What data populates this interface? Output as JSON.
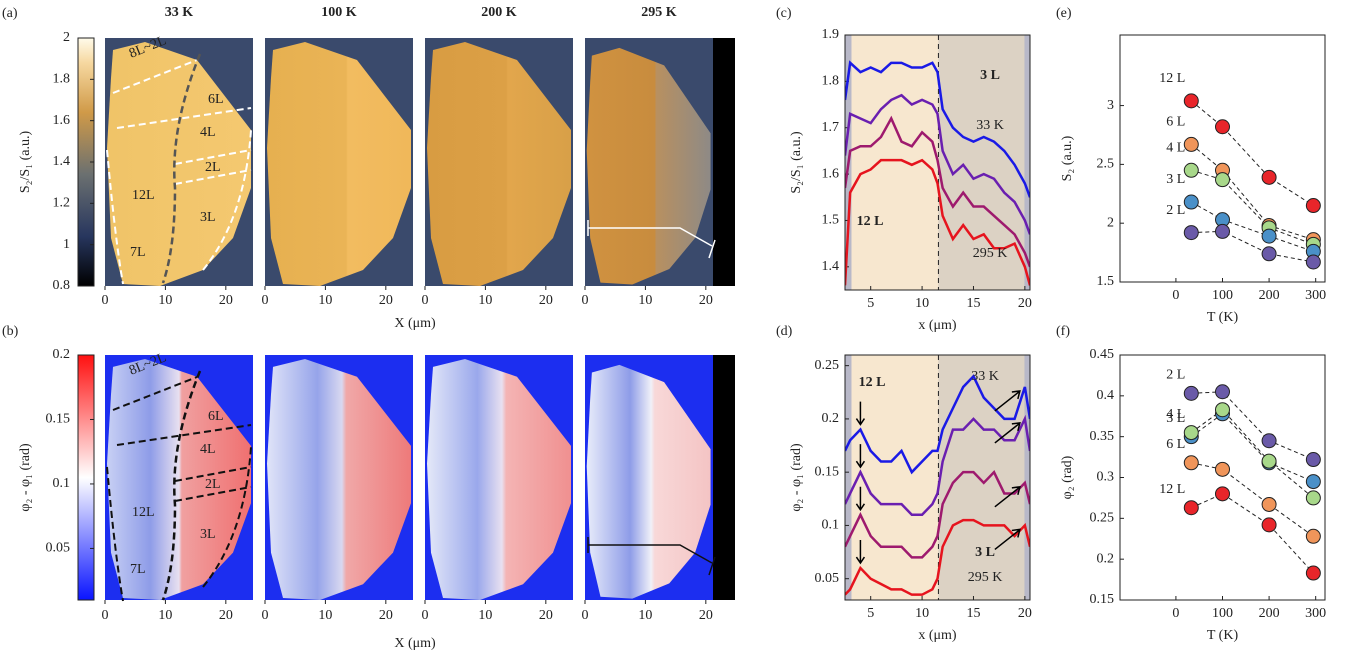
{
  "chart_data": [
    {
      "type": "image",
      "panel": "(a)",
      "titles": [
        "33 K",
        "100 K",
        "200 K",
        "295 K"
      ],
      "xlabel": "X (μm)",
      "xlim": [
        0,
        24.5
      ],
      "xticks": [
        0,
        10,
        20
      ],
      "colorbar_label": "S₂/S₁ (a.u.)",
      "clim": [
        0.8,
        2
      ],
      "cticks": [
        0.8,
        1,
        1.2,
        1.4,
        1.6,
        1.8,
        2
      ],
      "regions": [
        "8L~2L",
        "6L",
        "4L",
        "2L",
        "12L",
        "3L",
        "7L"
      ]
    },
    {
      "type": "image",
      "panel": "(b)",
      "xlabel": "X (μm)",
      "xlim": [
        0,
        24.5
      ],
      "xticks": [
        0,
        10,
        20
      ],
      "colorbar_label": "φ₂ - φ₁ (rad)",
      "clim": [
        0.01,
        0.2
      ],
      "cticks": [
        0.05,
        0.1,
        0.15,
        0.2
      ],
      "regions": [
        "8L~2L",
        "6L",
        "4L",
        "2L",
        "12L",
        "3L",
        "7L"
      ]
    },
    {
      "type": "line",
      "panel": "(c)",
      "xlabel": "x (μm)",
      "ylabel": "S₂/S₁ (a.u.)",
      "xlim": [
        2.5,
        20.5
      ],
      "ylim": [
        1.35,
        1.9
      ],
      "xticks": [
        5,
        10,
        15,
        20
      ],
      "yticks": [
        1.4,
        1.5,
        1.6,
        1.7,
        1.8,
        1.9
      ],
      "region_labels": [
        "3 L",
        "12 L"
      ],
      "x": [
        2.5,
        3,
        4,
        5,
        6,
        7,
        8,
        9,
        10,
        11,
        11.5,
        12,
        13,
        14,
        15,
        16,
        17,
        18,
        19,
        20,
        20.5
      ],
      "series": [
        {
          "name": "33 K",
          "color": "#1a1ae6",
          "values": [
            1.76,
            1.84,
            1.82,
            1.83,
            1.82,
            1.84,
            1.84,
            1.83,
            1.83,
            1.84,
            1.82,
            1.74,
            1.7,
            1.68,
            1.67,
            1.68,
            1.67,
            1.65,
            1.62,
            1.58,
            1.55
          ]
        },
        {
          "color": "#6a1fb0",
          "values": [
            1.64,
            1.73,
            1.72,
            1.71,
            1.74,
            1.76,
            1.77,
            1.75,
            1.76,
            1.75,
            1.73,
            1.65,
            1.6,
            1.62,
            1.59,
            1.6,
            1.59,
            1.56,
            1.54,
            1.5,
            1.47
          ]
        },
        {
          "color": "#9e1a6e",
          "values": [
            1.57,
            1.65,
            1.66,
            1.66,
            1.68,
            1.72,
            1.67,
            1.66,
            1.69,
            1.67,
            1.63,
            1.57,
            1.53,
            1.56,
            1.53,
            1.53,
            1.51,
            1.49,
            1.47,
            1.43,
            1.4
          ]
        },
        {
          "name": "295 K",
          "color": "#e6141e",
          "values": [
            1.36,
            1.56,
            1.6,
            1.61,
            1.63,
            1.63,
            1.63,
            1.62,
            1.63,
            1.61,
            1.58,
            1.51,
            1.46,
            1.49,
            1.46,
            1.47,
            1.44,
            1.44,
            1.45,
            1.4,
            1.36
          ]
        }
      ]
    },
    {
      "type": "line",
      "panel": "(d)",
      "xlabel": "x (μm)",
      "ylabel": "φ₂ - φ₁ (rad)",
      "xlim": [
        2.5,
        20.5
      ],
      "ylim": [
        0.03,
        0.26
      ],
      "xticks": [
        5,
        10,
        15,
        20
      ],
      "yticks": [
        0.05,
        0.1,
        0.15,
        0.2,
        0.25
      ],
      "region_labels": [
        "12 L",
        "3 L"
      ],
      "x": [
        2.5,
        3,
        4,
        5,
        6,
        7,
        8,
        9,
        10,
        11,
        11.5,
        12,
        13,
        14,
        15,
        16,
        17,
        18,
        19,
        20,
        20.5
      ],
      "series": [
        {
          "name": "33 K",
          "color": "#1a1ae6",
          "values": [
            0.17,
            0.18,
            0.19,
            0.17,
            0.16,
            0.16,
            0.17,
            0.15,
            0.16,
            0.17,
            0.17,
            0.19,
            0.21,
            0.23,
            0.24,
            0.22,
            0.21,
            0.2,
            0.2,
            0.23,
            0.2
          ]
        },
        {
          "color": "#6a1fb0",
          "values": [
            0.12,
            0.13,
            0.15,
            0.13,
            0.12,
            0.12,
            0.12,
            0.11,
            0.11,
            0.12,
            0.13,
            0.16,
            0.19,
            0.19,
            0.2,
            0.19,
            0.19,
            0.18,
            0.18,
            0.2,
            0.17
          ]
        },
        {
          "color": "#9e1a6e",
          "values": [
            0.08,
            0.09,
            0.11,
            0.09,
            0.08,
            0.08,
            0.08,
            0.07,
            0.07,
            0.08,
            0.09,
            0.12,
            0.14,
            0.15,
            0.15,
            0.14,
            0.15,
            0.13,
            0.13,
            0.14,
            0.12
          ]
        },
        {
          "name": "295 K",
          "color": "#e6141e",
          "values": [
            0.035,
            0.04,
            0.06,
            0.05,
            0.045,
            0.04,
            0.04,
            0.035,
            0.035,
            0.04,
            0.05,
            0.08,
            0.1,
            0.105,
            0.105,
            0.1,
            0.1,
            0.1,
            0.09,
            0.1,
            0.08
          ]
        }
      ]
    },
    {
      "type": "scatter",
      "panel": "(e)",
      "xlabel": "T (K)",
      "ylabel": "S₂ (a.u.)",
      "xlim": [
        -120,
        320
      ],
      "ylim": [
        1.5,
        3.6
      ],
      "xticks": [
        0,
        100,
        200,
        300
      ],
      "yticks": [
        1.5,
        2,
        2.5,
        3
      ],
      "x": [
        33,
        100,
        200,
        295
      ],
      "series": [
        {
          "name": "12 L",
          "color": "#e8252a",
          "values": [
            3.04,
            2.82,
            2.39,
            2.15
          ]
        },
        {
          "name": "6 L",
          "color": "#f0955a",
          "values": [
            2.67,
            2.45,
            1.98,
            1.86
          ]
        },
        {
          "name": "4 L",
          "color": "#a8d88a",
          "values": [
            2.45,
            2.37,
            1.96,
            1.82
          ]
        },
        {
          "name": "3 L",
          "color": "#4a90c8",
          "values": [
            2.18,
            2.03,
            1.89,
            1.76
          ]
        },
        {
          "name": "2 L",
          "color": "#6a5aa8",
          "values": [
            1.92,
            1.93,
            1.74,
            1.67
          ]
        }
      ]
    },
    {
      "type": "scatter",
      "panel": "(f)",
      "xlabel": "T (K)",
      "ylabel": "φ₂ (rad)",
      "xlim": [
        -120,
        320
      ],
      "ylim": [
        0.15,
        0.45
      ],
      "xticks": [
        0,
        100,
        200,
        300
      ],
      "yticks": [
        0.15,
        0.2,
        0.25,
        0.3,
        0.35,
        0.4,
        0.45
      ],
      "x": [
        33,
        100,
        200,
        295
      ],
      "series": [
        {
          "name": "2 L",
          "color": "#6a5aa8",
          "values": [
            0.403,
            0.405,
            0.345,
            0.322
          ]
        },
        {
          "name": "3 L",
          "color": "#4a90c8",
          "values": [
            0.35,
            0.378,
            0.318,
            0.295
          ]
        },
        {
          "name": "4 L",
          "color": "#a8d88a",
          "values": [
            0.355,
            0.383,
            0.32,
            0.275
          ]
        },
        {
          "name": "6 L",
          "color": "#f0955a",
          "values": [
            0.318,
            0.31,
            0.267,
            0.228
          ]
        },
        {
          "name": "12 L",
          "color": "#e8252a",
          "values": [
            0.263,
            0.28,
            0.242,
            0.183
          ]
        }
      ]
    }
  ]
}
